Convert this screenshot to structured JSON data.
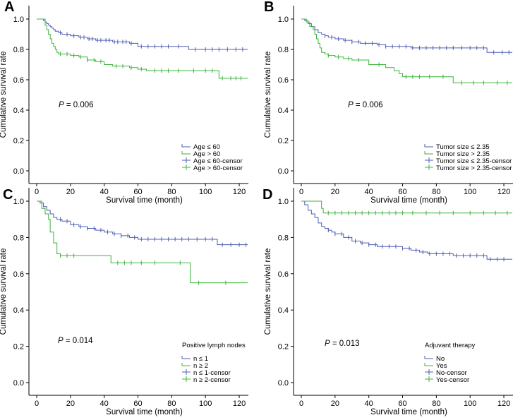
{
  "colors": {
    "blue": "#4F5FB3",
    "green": "#3CB33C"
  },
  "panels": [
    {
      "id": "A",
      "label": "A",
      "xlabel": "Survival time (month)",
      "ylabel": "Cumulative survival rate",
      "p_italic": "P",
      "p_value": "= 0.006",
      "legend_title": "",
      "legend": [
        "Age ≤ 60",
        "Age > 60",
        "Age ≤ 60-censor",
        "Age > 60-censor"
      ],
      "chart_data": {
        "type": "line",
        "title": "",
        "xlabel": "Survival time (month)",
        "ylabel": "Cumulative survival rate",
        "xlim": [
          0,
          125
        ],
        "ylim": [
          0,
          1.0
        ],
        "xticks": [
          0,
          20,
          40,
          60,
          80,
          100,
          120
        ],
        "yticks": [
          0.0,
          0.2,
          0.4,
          0.6,
          0.8,
          1.0
        ],
        "series": [
          {
            "name": "Age ≤ 60",
            "color": "blue",
            "x": [
              0,
              2,
              4,
              5,
              6,
              7,
              8,
              9,
              10,
              11,
              12,
              13,
              15,
              17,
              20,
              25,
              30,
              35,
              40,
              45,
              55,
              60,
              65,
              90,
              110,
              125
            ],
            "y": [
              1.0,
              1.0,
              0.99,
              0.98,
              0.97,
              0.96,
              0.95,
              0.94,
              0.93,
              0.92,
              0.92,
              0.91,
              0.9,
              0.9,
              0.89,
              0.88,
              0.87,
              0.86,
              0.86,
              0.85,
              0.84,
              0.82,
              0.82,
              0.8,
              0.8,
              0.8
            ],
            "censor": [
              14,
              18,
              22,
              26,
              28,
              31,
              33,
              36,
              38,
              41,
              43,
              46,
              48,
              51,
              53,
              56,
              62,
              66,
              70,
              74,
              78,
              84,
              94,
              100,
              104,
              108,
              113,
              118,
              122
            ]
          },
          {
            "name": "Age > 60",
            "color": "green",
            "x": [
              0,
              3,
              5,
              6,
              7,
              8,
              9,
              10,
              11,
              12,
              13,
              15,
              20,
              25,
              30,
              35,
              40,
              45,
              55,
              60,
              65,
              80,
              108,
              125
            ],
            "y": [
              1.0,
              1.0,
              0.96,
              0.93,
              0.9,
              0.87,
              0.84,
              0.82,
              0.8,
              0.78,
              0.77,
              0.77,
              0.76,
              0.75,
              0.73,
              0.72,
              0.7,
              0.69,
              0.68,
              0.67,
              0.66,
              0.66,
              0.61,
              0.61
            ],
            "censor": [
              14,
              18,
              22,
              26,
              30,
              34,
              38,
              47,
              51,
              56,
              62,
              70,
              74,
              78,
              84,
              93,
              100,
              104,
              110,
              115,
              118,
              121
            ]
          }
        ]
      }
    },
    {
      "id": "B",
      "label": "B",
      "xlabel": "Survival time (month)",
      "ylabel": "Cumulative survival rate",
      "p_italic": "P",
      "p_value": "= 0.006",
      "legend_title": "",
      "legend": [
        "Tumor size ≤ 2.35",
        "Tumor size > 2.35",
        "Tumor size ≤ 2.35-censor",
        "Tumor size > 2.35-censor"
      ],
      "chart_data": {
        "type": "line",
        "title": "",
        "xlabel": "Survival time (month)",
        "ylabel": "Cumulative survival rate",
        "xlim": [
          0,
          125
        ],
        "ylim": [
          0,
          1.0
        ],
        "xticks": [
          0,
          20,
          40,
          60,
          80,
          100,
          120
        ],
        "yticks": [
          0.0,
          0.2,
          0.4,
          0.6,
          0.8,
          1.0
        ],
        "series": [
          {
            "name": "Tumor size ≤ 2.35",
            "color": "blue",
            "x": [
              0,
              2,
              4,
              6,
              8,
              10,
              12,
              14,
              16,
              20,
              25,
              30,
              35,
              40,
              45,
              50,
              55,
              60,
              65,
              80,
              110,
              125
            ],
            "y": [
              1.0,
              0.99,
              0.97,
              0.95,
              0.93,
              0.91,
              0.9,
              0.89,
              0.88,
              0.87,
              0.86,
              0.85,
              0.84,
              0.84,
              0.83,
              0.82,
              0.82,
              0.82,
              0.81,
              0.81,
              0.78,
              0.78
            ],
            "censor": [
              14,
              18,
              22,
              26,
              30,
              34,
              38,
              42,
              46,
              50,
              54,
              58,
              62,
              66,
              70,
              74,
              78,
              82,
              86,
              90,
              95,
              100,
              104,
              108,
              114,
              119,
              123
            ]
          },
          {
            "name": "Tumor size > 2.35",
            "color": "green",
            "x": [
              0,
              3,
              5,
              7,
              8,
              9,
              10,
              11,
              12,
              14,
              16,
              20,
              25,
              30,
              40,
              50,
              55,
              58,
              60,
              62,
              88,
              90,
              125
            ],
            "y": [
              1.0,
              0.98,
              0.95,
              0.93,
              0.9,
              0.87,
              0.84,
              0.81,
              0.78,
              0.77,
              0.76,
              0.75,
              0.74,
              0.73,
              0.7,
              0.68,
              0.66,
              0.64,
              0.62,
              0.62,
              0.62,
              0.58,
              0.58
            ],
            "censor": [
              16,
              22,
              28,
              34,
              46,
              62,
              66,
              70,
              76,
              84,
              95,
              102,
              108,
              116,
              122
            ]
          }
        ]
      }
    },
    {
      "id": "C",
      "label": "C",
      "xlabel": "Survival time (month)",
      "ylabel": "Cumulative survival rate",
      "p_italic": "P",
      "p_value": "= 0.014",
      "legend_title": "Positive lymph nodes",
      "legend": [
        "n ≤ 1",
        "n ≥ 2",
        "n ≤ 1-censor",
        "n ≥ 2-censor"
      ],
      "chart_data": {
        "type": "line",
        "title": "",
        "xlabel": "Survival time (month)",
        "ylabel": "Cumulative survival rate",
        "xlim": [
          0,
          125
        ],
        "ylim": [
          0,
          1.0
        ],
        "xticks": [
          0,
          20,
          40,
          60,
          80,
          100,
          120
        ],
        "yticks": [
          0.0,
          0.2,
          0.4,
          0.6,
          0.8,
          1.0
        ],
        "series": [
          {
            "name": "n ≤ 1",
            "color": "blue",
            "x": [
              0,
              2,
              4,
              6,
              8,
              10,
              12,
              15,
              20,
              25,
              30,
              35,
              40,
              45,
              50,
              55,
              60,
              65,
              80,
              107,
              125
            ],
            "y": [
              1.0,
              0.99,
              0.97,
              0.95,
              0.93,
              0.91,
              0.9,
              0.89,
              0.87,
              0.86,
              0.85,
              0.84,
              0.83,
              0.82,
              0.81,
              0.8,
              0.79,
              0.79,
              0.79,
              0.76,
              0.76
            ],
            "censor": [
              14,
              18,
              22,
              26,
              30,
              34,
              38,
              42,
              46,
              50,
              54,
              58,
              62,
              66,
              70,
              74,
              78,
              82,
              86,
              90,
              95,
              100,
              104,
              110,
              115,
              120,
              124
            ]
          },
          {
            "name": "n ≥ 2",
            "color": "green",
            "x": [
              0,
              3,
              5,
              7,
              8,
              10,
              12,
              14,
              43,
              44,
              90,
              91,
              125
            ],
            "y": [
              1.0,
              0.96,
              0.93,
              0.9,
              0.83,
              0.77,
              0.71,
              0.7,
              0.7,
              0.66,
              0.66,
              0.55,
              0.55
            ],
            "censor": [
              14,
              18,
              22,
              48,
              52,
              56,
              62,
              70,
              85,
              96,
              112
            ]
          }
        ]
      }
    },
    {
      "id": "D",
      "label": "D",
      "xlabel": "Survival time (month)",
      "ylabel": "Cumulative survival rate",
      "p_italic": "P",
      "p_value": "= 0.013",
      "legend_title": "Adjuvant therapy",
      "legend": [
        "No",
        "Yes",
        "No-censor",
        "Yes-censor"
      ],
      "chart_data": {
        "type": "line",
        "title": "",
        "xlabel": "Survival time (month)",
        "ylabel": "Cumulative survival rate",
        "xlim": [
          0,
          125
        ],
        "ylim": [
          0,
          1.0
        ],
        "xticks": [
          0,
          20,
          40,
          60,
          80,
          100,
          120
        ],
        "yticks": [
          0.0,
          0.2,
          0.4,
          0.6,
          0.8,
          1.0
        ],
        "series": [
          {
            "name": "No",
            "color": "blue",
            "x": [
              0,
              2,
              4,
              6,
              8,
              10,
              12,
              14,
              16,
              18,
              20,
              25,
              30,
              35,
              40,
              45,
              50,
              55,
              60,
              65,
              70,
              75,
              80,
              90,
              110,
              125
            ],
            "y": [
              1.0,
              0.98,
              0.95,
              0.93,
              0.91,
              0.88,
              0.86,
              0.85,
              0.84,
              0.83,
              0.82,
              0.8,
              0.78,
              0.77,
              0.76,
              0.75,
              0.75,
              0.75,
              0.74,
              0.73,
              0.72,
              0.71,
              0.71,
              0.7,
              0.68,
              0.68
            ],
            "censor": [
              16,
              20,
              24,
              28,
              32,
              36,
              40,
              44,
              48,
              52,
              56,
              60,
              64,
              68,
              72,
              76,
              80,
              84,
              88,
              92,
              96,
              100,
              104,
              108,
              112,
              116,
              120
            ]
          },
          {
            "name": "Yes",
            "color": "green",
            "x": [
              0,
              10,
              12,
              13,
              125
            ],
            "y": [
              1.0,
              1.0,
              0.96,
              0.935,
              0.935
            ],
            "censor": [
              16,
              20,
              24,
              28,
              32,
              36,
              40,
              44,
              48,
              52,
              56,
              60,
              66,
              74,
              82,
              90,
              100,
              108,
              115,
              122
            ]
          }
        ]
      }
    }
  ]
}
